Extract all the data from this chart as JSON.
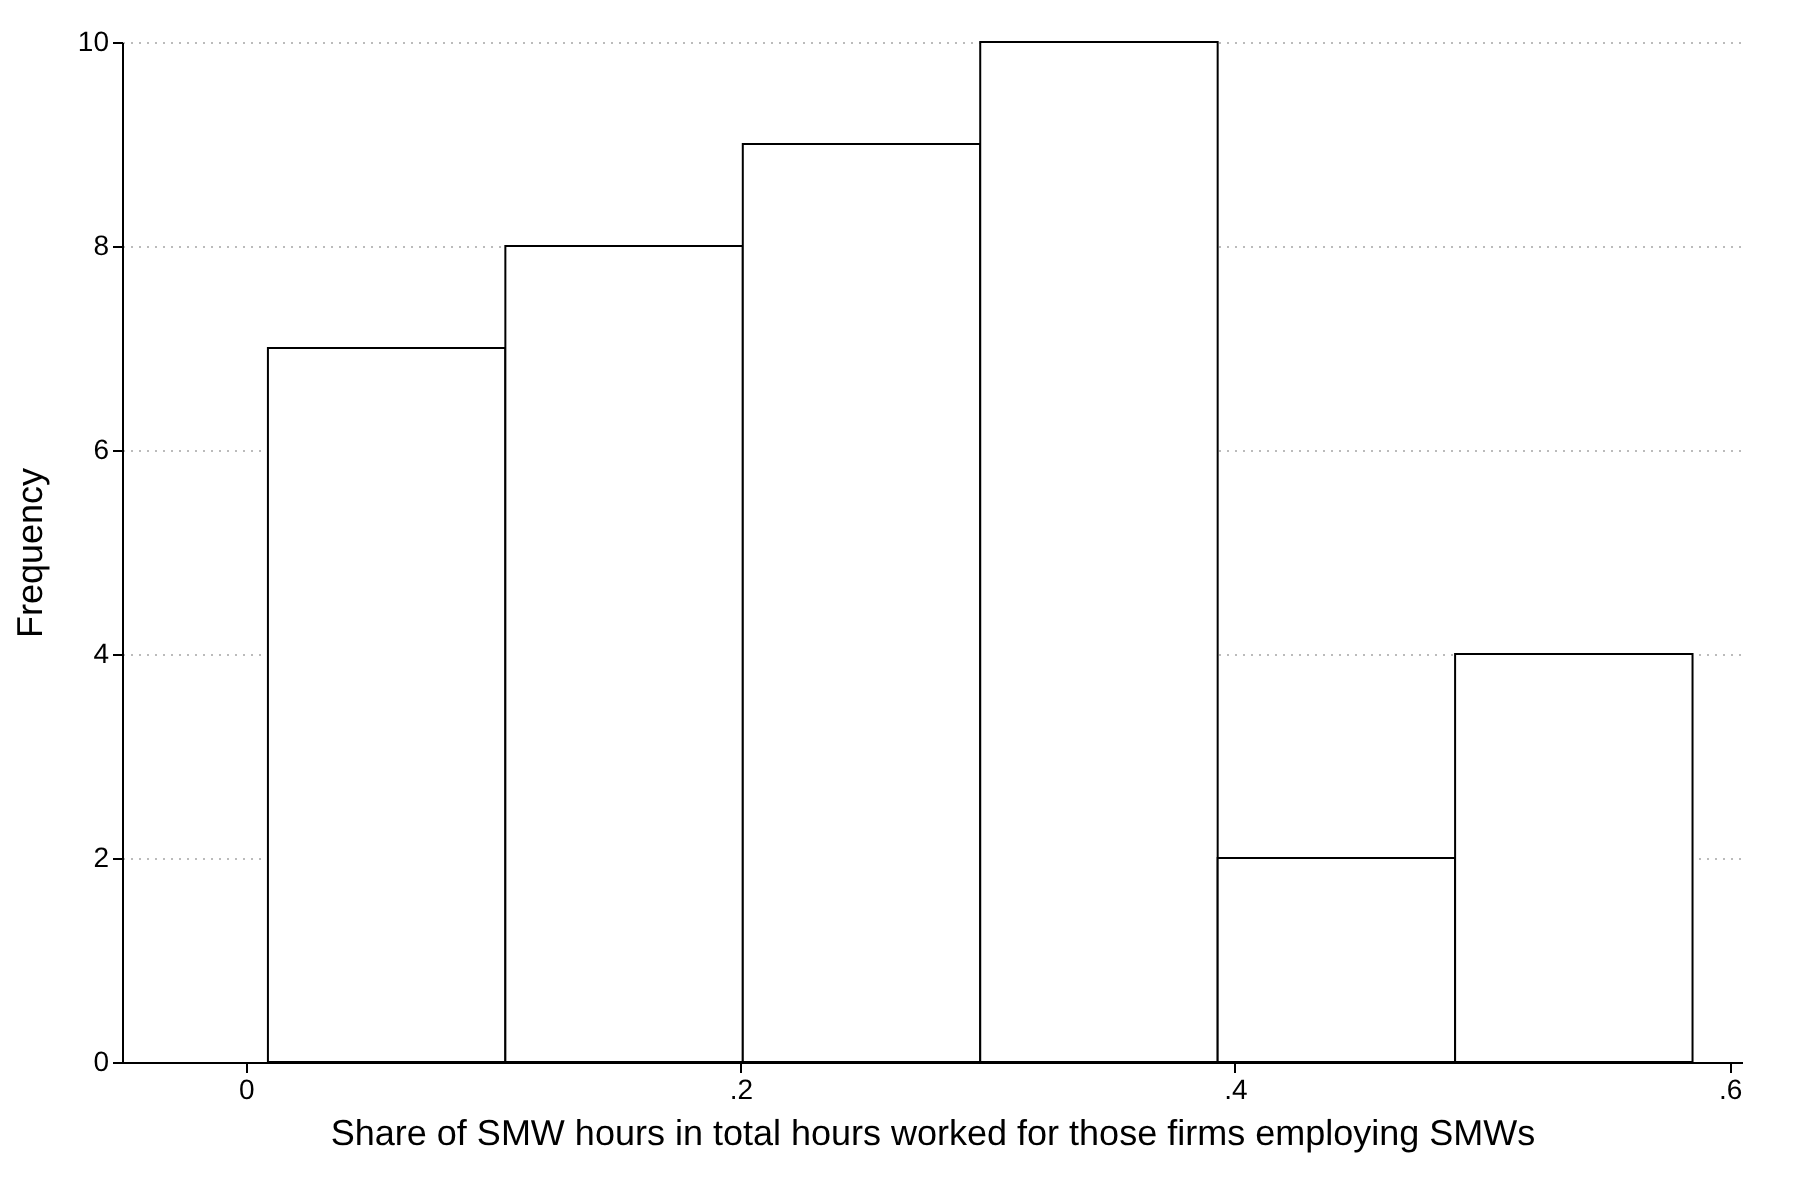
{
  "chart_data": {
    "type": "histogram",
    "xlabel": "Share of SMW hours in total hours worked for those firms employing SMWs",
    "ylabel": "Frequency",
    "bins": [
      0.009,
      0.105,
      0.201,
      0.297,
      0.393,
      0.489,
      0.585
    ],
    "values": [
      7,
      8,
      9,
      10,
      2,
      4
    ],
    "color": "#ffffff",
    "xlim": [
      -0.05,
      0.605
    ],
    "xticks": [
      0,
      {
        "value": 0.2,
        "label": ".2"
      },
      {
        "value": 0.4,
        "label": ".4"
      },
      {
        "value": 0.6,
        "label": ".6"
      }
    ],
    "ylim": [
      0,
      10
    ],
    "yticks": [
      0,
      2,
      4,
      6,
      8,
      10
    ],
    "grid": "y"
  }
}
